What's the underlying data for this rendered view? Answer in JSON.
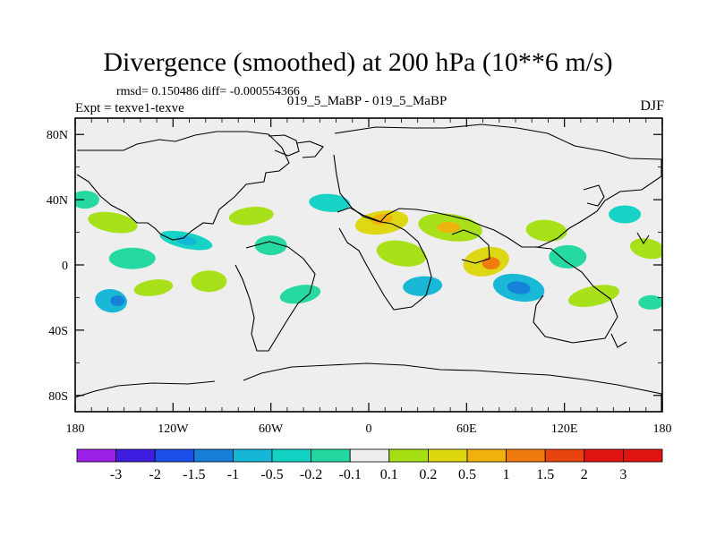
{
  "chart_data": {
    "type": "heatmap",
    "title": "Divergence (smoothed) at 200 hPa (10**6 m/s)",
    "stats_line": "rmsd= 0.150486 diff= -0.000554366",
    "left_label": "Expt = texve1-texve",
    "center_label": "019_5_MaBP - 019_5_MaBP",
    "right_label": "DJF",
    "x_ticks": [
      "180",
      "120W",
      "60W",
      "0",
      "60E",
      "120E",
      "180"
    ],
    "y_ticks": [
      "80N",
      "40N",
      "0",
      "40S",
      "80S"
    ],
    "x_range": [
      -180,
      180
    ],
    "y_range": [
      -90,
      90
    ],
    "contour_levels": [
      -3,
      -2,
      -1.5,
      -1,
      -0.5,
      -0.2,
      -0.1,
      0.1,
      0.2,
      0.5,
      1,
      1.5,
      2,
      3
    ],
    "colorbar_labels": [
      "-3",
      "-2",
      "-1.5",
      "-1",
      "-0.5",
      "-0.2",
      "-0.1",
      "0.1",
      "0.2",
      "0.5",
      "1",
      "1.5",
      "2",
      "3"
    ],
    "colorbar_colors": [
      "#9b20e8",
      "#3f1de0",
      "#1a4ee8",
      "#167fd8",
      "#14b7d6",
      "#12d2c4",
      "#22d8a0",
      "#ededed",
      "#a6df14",
      "#ddd60f",
      "#f0b10d",
      "#ee7a0d",
      "#e8440e",
      "#e21313",
      "#e21313"
    ],
    "background_color": "#eeeeee",
    "map_line_color": "#000000"
  }
}
